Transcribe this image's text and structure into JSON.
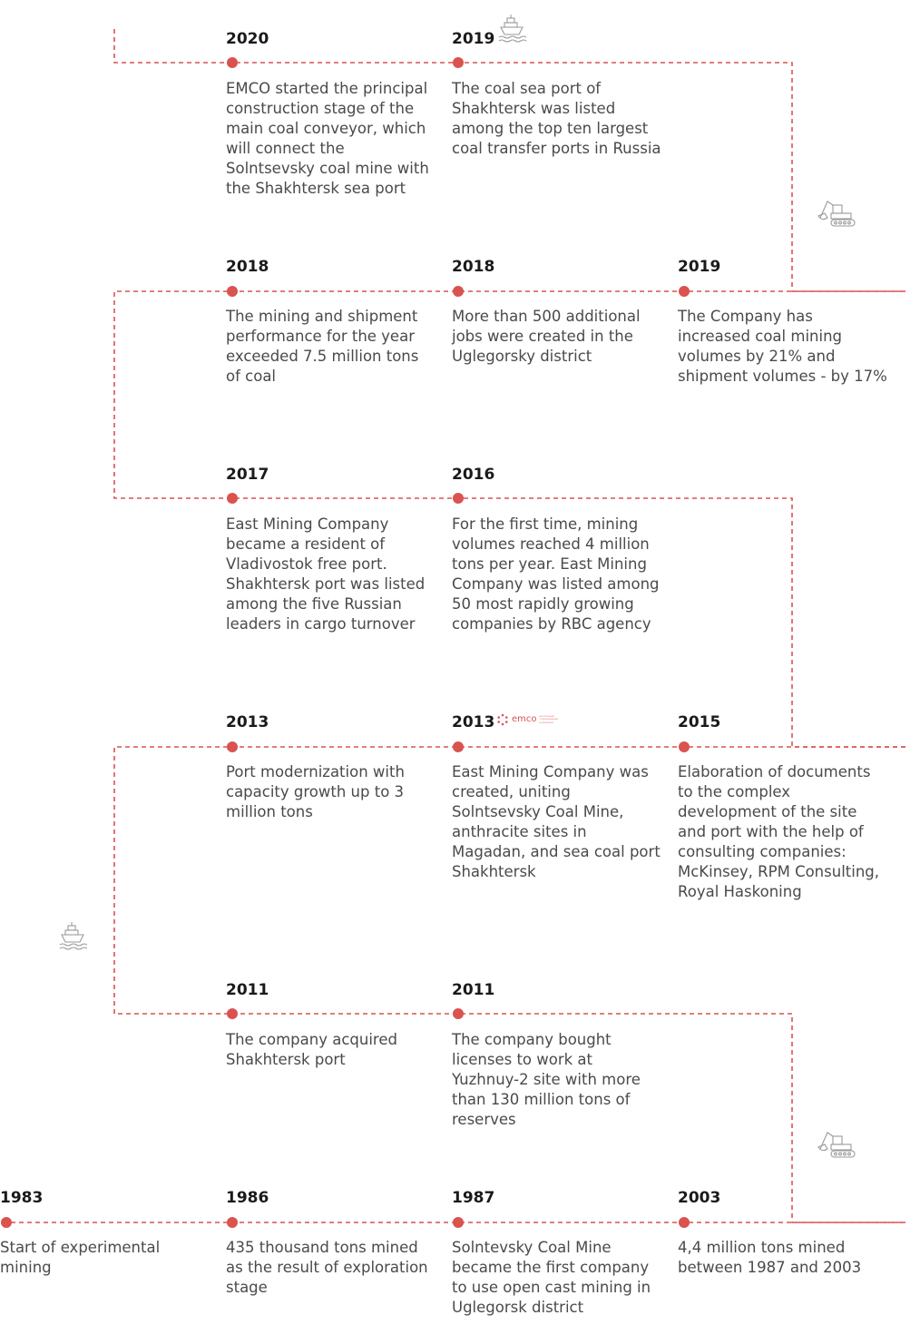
{
  "colors": {
    "accent": "#d9534f",
    "year": "#1a1a1a",
    "text": "#4a4a4a",
    "icon": "#9a9a9a"
  },
  "entries": [
    {
      "year": "2020",
      "text": "EMCO started the principal construction stage of the main coal conveyor, which will connect the Solntsevsky coal mine with the Shakhtersk sea port"
    },
    {
      "year": "2019",
      "text": "The coal sea port of Shakhtersk was listed among the top ten largest coal transfer ports in Russia"
    },
    {
      "year": "2018",
      "text": "The mining and shipment performance for the year exceeded 7.5 million tons of coal"
    },
    {
      "year": "2018",
      "text": "More than 500 additional jobs were created in the Uglegorsky district"
    },
    {
      "year": "2019",
      "text": "The Company has increased coal mining volumes by 21% and shipment volumes - by 17%"
    },
    {
      "year": "2017",
      "text": "East Mining Company became a resident of Vladivostok free port. Shakhtersk port was listed among the five Russian leaders in cargo turnover"
    },
    {
      "year": "2016",
      "text": "For the first time, mining volumes reached 4 million tons per year. East Mining Company was listed among 50 most rapidly growing companies by RBC agency"
    },
    {
      "year": "2013",
      "text": "Port modernization with capacity growth up to 3 million tons"
    },
    {
      "year": "2013",
      "text": "East Mining Company was created, uniting Solntsevsky Coal Mine, anthracite sites in Magadan, and sea coal port Shakhtersk"
    },
    {
      "year": "2015",
      "text": "Elaboration of documents to the complex development of the site and port with the help of consulting companies: McKinsey, RPM Consulting, Royal Haskoning"
    },
    {
      "year": "2011",
      "text": "The company acquired Shakhtersk port"
    },
    {
      "year": "2011",
      "text": "The company bought licenses to work at Yuzhnuy-2 site with more than 130 million tons of reserves"
    },
    {
      "year": "1983",
      "text": "Start of experimental mining"
    },
    {
      "year": "1986",
      "text": "435 thousand tons mined as the result of exploration stage"
    },
    {
      "year": "1987",
      "text": "Solntevsky Coal Mine became the first company to use open cast mining in Uglegorsk district"
    },
    {
      "year": "2003",
      "text": "4,4 million tons mined between 1987 and 2003"
    }
  ],
  "logo": {
    "word": "emco",
    "sub": "восточная горнорудная компания"
  },
  "icons": [
    "ship-icon",
    "excavator-icon",
    "excavator-icon",
    "ship-icon"
  ]
}
